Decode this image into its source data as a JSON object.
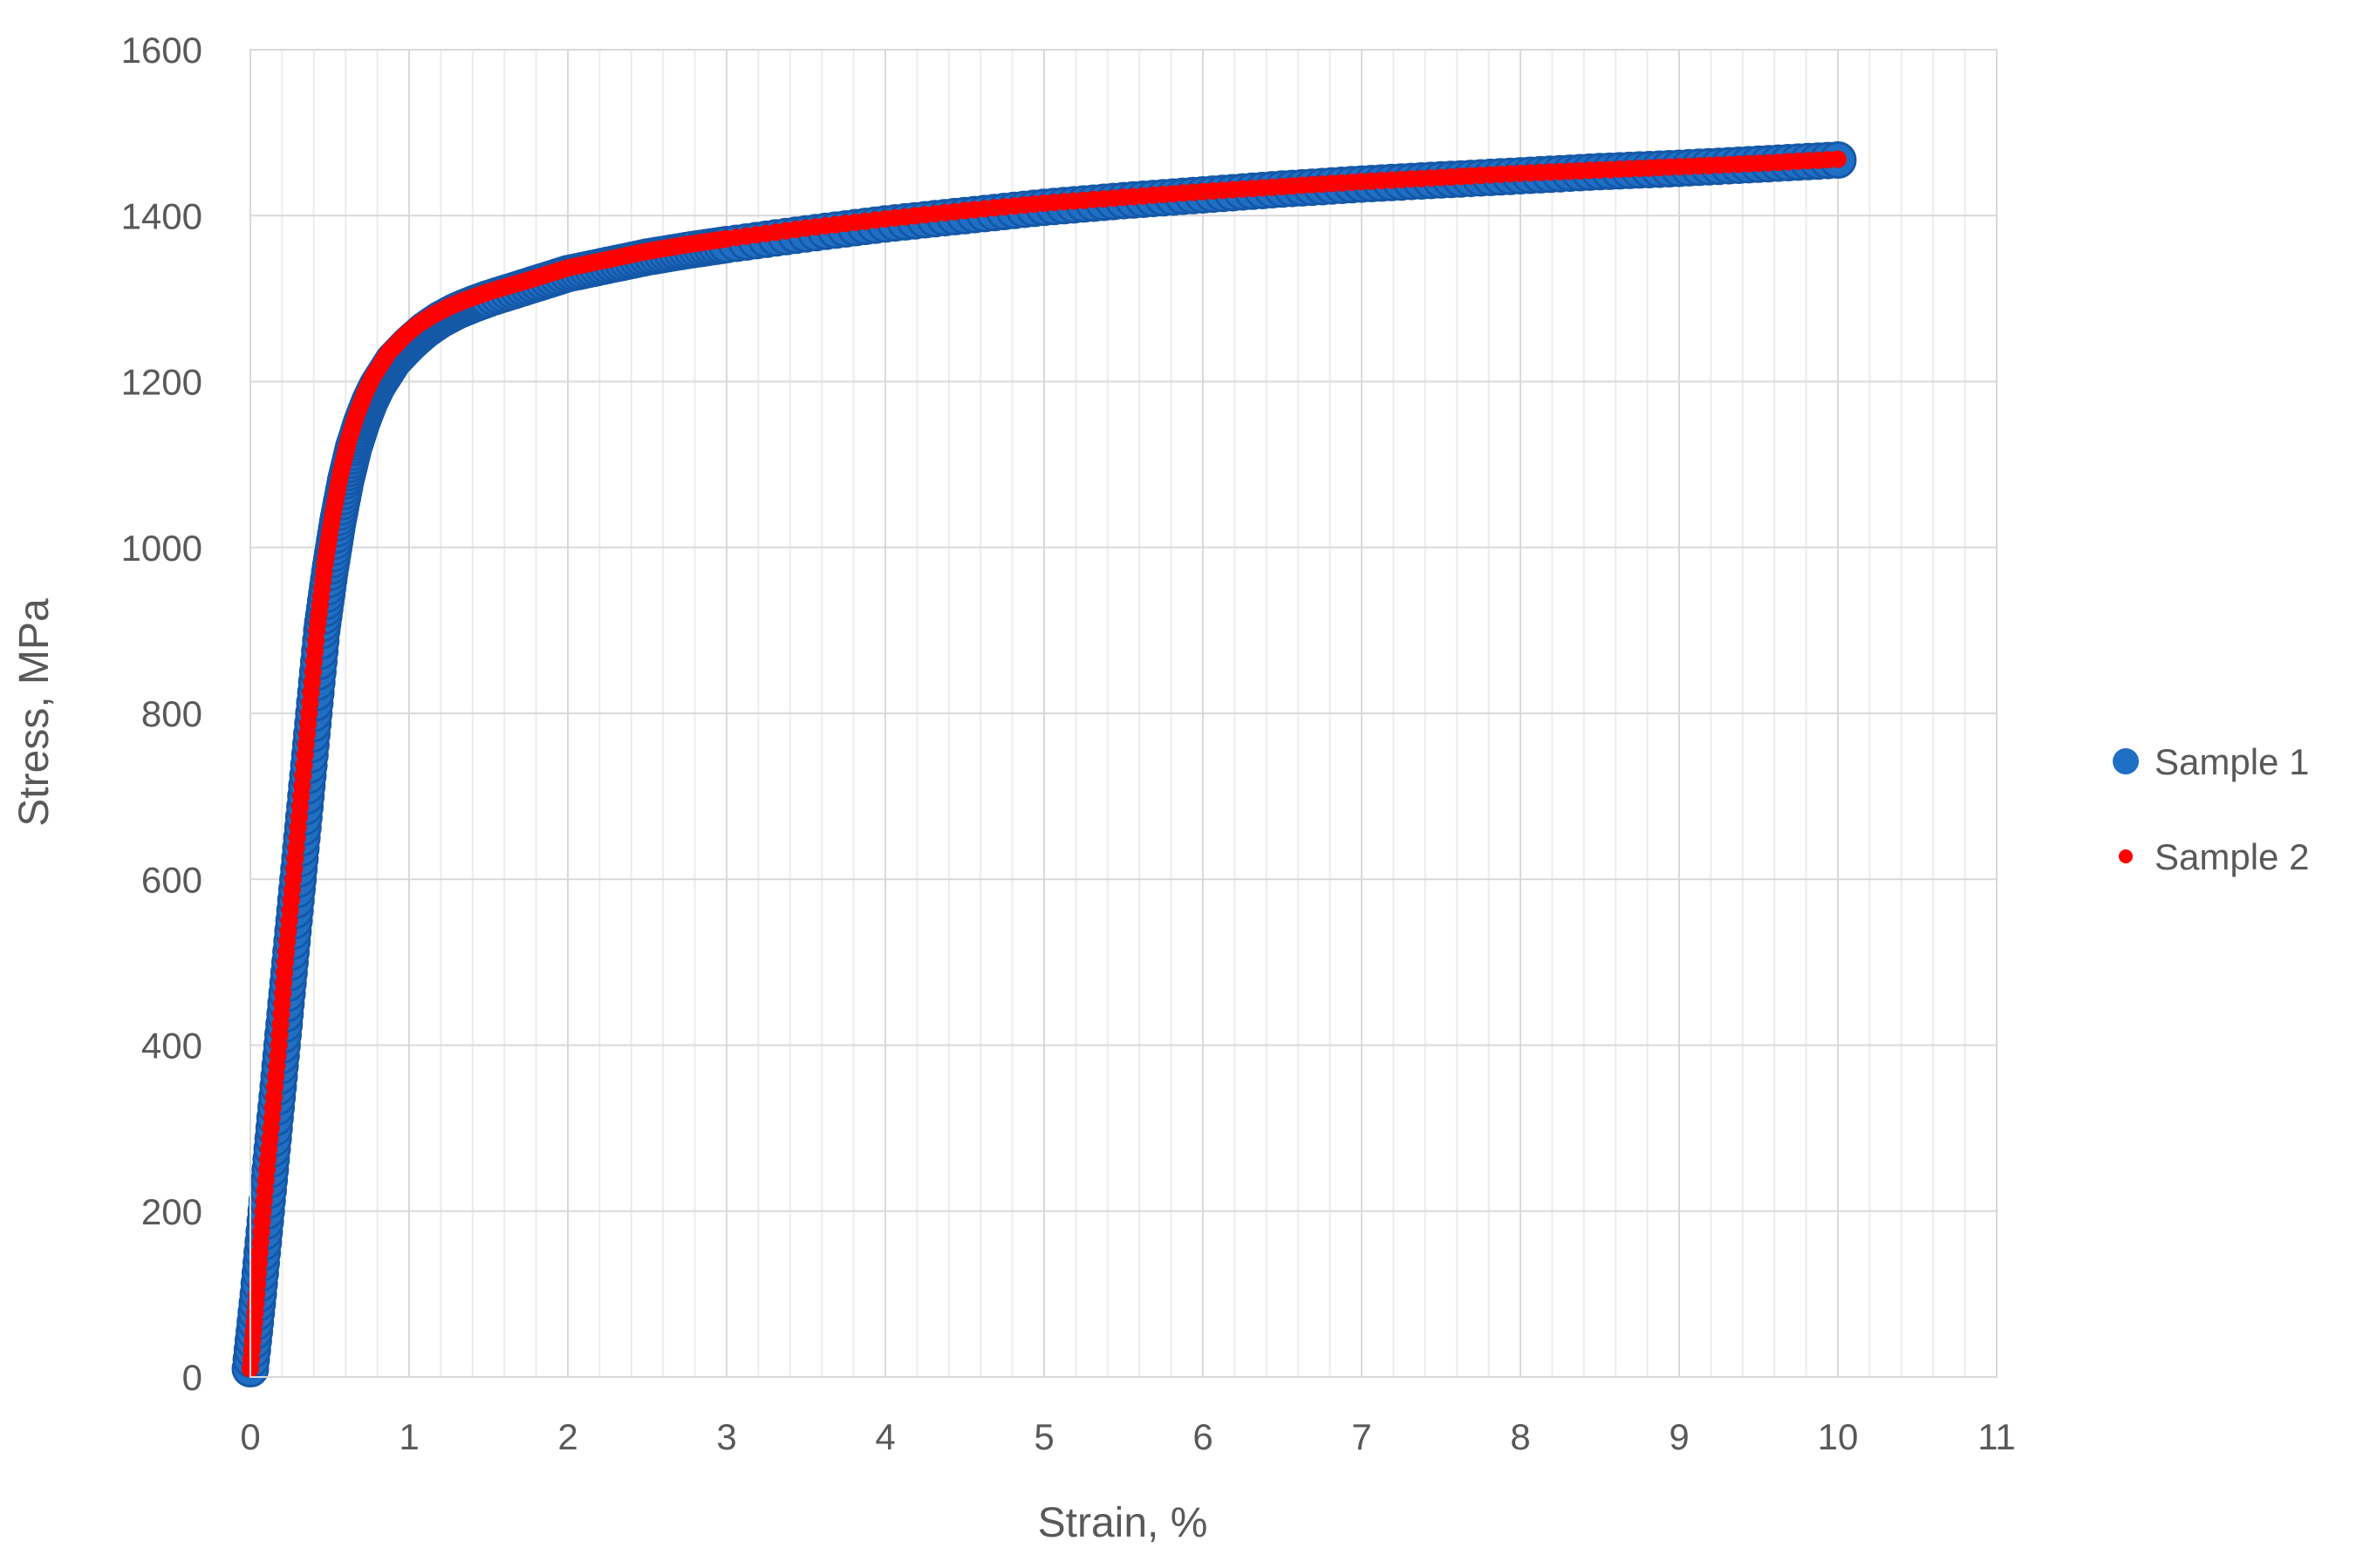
{
  "chart_data": {
    "type": "scatter",
    "title": "",
    "xlabel": "Strain, %",
    "ylabel": "Stress, MPa",
    "xlim": [
      0,
      11
    ],
    "ylim": [
      0,
      1600
    ],
    "x_ticks": [
      0,
      1,
      2,
      3,
      4,
      5,
      6,
      7,
      8,
      9,
      10,
      11
    ],
    "y_ticks": [
      0,
      200,
      400,
      600,
      800,
      1000,
      1200,
      1400,
      1600
    ],
    "x_minor_step": 0.2,
    "grid": true,
    "legend_position": "right",
    "series": [
      {
        "name": "Sample 1",
        "color": "#1F6FC5",
        "marker": "large-circle",
        "points": [
          [
            0.0,
            10
          ],
          [
            0.05,
            100
          ],
          [
            0.1,
            200
          ],
          [
            0.15,
            300
          ],
          [
            0.2,
            400
          ],
          [
            0.25,
            500
          ],
          [
            0.3,
            600
          ],
          [
            0.35,
            700
          ],
          [
            0.4,
            800
          ],
          [
            0.45,
            900
          ],
          [
            0.5,
            970
          ],
          [
            0.55,
            1030
          ],
          [
            0.6,
            1080
          ],
          [
            0.65,
            1120
          ],
          [
            0.7,
            1150
          ],
          [
            0.75,
            1175
          ],
          [
            0.8,
            1195
          ],
          [
            0.85,
            1210
          ],
          [
            0.9,
            1225
          ],
          [
            0.95,
            1235
          ],
          [
            1.0,
            1245
          ],
          [
            1.1,
            1262
          ],
          [
            1.2,
            1275
          ],
          [
            1.3,
            1285
          ],
          [
            1.4,
            1293
          ],
          [
            1.5,
            1300
          ],
          [
            1.75,
            1315
          ],
          [
            2.0,
            1330
          ],
          [
            2.25,
            1340
          ],
          [
            2.5,
            1350
          ],
          [
            2.75,
            1358
          ],
          [
            3.0,
            1365
          ],
          [
            3.5,
            1378
          ],
          [
            4.0,
            1390
          ],
          [
            4.5,
            1400
          ],
          [
            5.0,
            1410
          ],
          [
            5.5,
            1418
          ],
          [
            6.0,
            1425
          ],
          [
            6.5,
            1432
          ],
          [
            7.0,
            1438
          ],
          [
            7.5,
            1443
          ],
          [
            8.0,
            1448
          ],
          [
            8.5,
            1453
          ],
          [
            9.0,
            1457
          ],
          [
            9.5,
            1462
          ],
          [
            10.0,
            1467
          ]
        ]
      },
      {
        "name": "Sample 2",
        "color": "#FF0000",
        "marker": "small-circle",
        "points": [
          [
            0.0,
            10
          ],
          [
            0.04,
            100
          ],
          [
            0.08,
            200
          ],
          [
            0.13,
            300
          ],
          [
            0.18,
            400
          ],
          [
            0.22,
            500
          ],
          [
            0.27,
            600
          ],
          [
            0.32,
            700
          ],
          [
            0.37,
            800
          ],
          [
            0.42,
            900
          ],
          [
            0.47,
            980
          ],
          [
            0.52,
            1040
          ],
          [
            0.57,
            1090
          ],
          [
            0.62,
            1130
          ],
          [
            0.67,
            1160
          ],
          [
            0.72,
            1185
          ],
          [
            0.77,
            1205
          ],
          [
            0.82,
            1220
          ],
          [
            0.87,
            1235
          ],
          [
            0.92,
            1245
          ],
          [
            0.97,
            1255
          ],
          [
            1.05,
            1268
          ],
          [
            1.15,
            1280
          ],
          [
            1.25,
            1290
          ],
          [
            1.35,
            1298
          ],
          [
            1.5,
            1308
          ],
          [
            1.75,
            1322
          ],
          [
            2.0,
            1337
          ],
          [
            2.25,
            1347
          ],
          [
            2.5,
            1357
          ],
          [
            2.75,
            1365
          ],
          [
            3.0,
            1372
          ],
          [
            3.5,
            1385
          ],
          [
            4.0,
            1396
          ],
          [
            4.5,
            1406
          ],
          [
            5.0,
            1415
          ],
          [
            5.5,
            1422
          ],
          [
            6.0,
            1429
          ],
          [
            6.5,
            1435
          ],
          [
            7.0,
            1441
          ],
          [
            7.5,
            1446
          ],
          [
            8.0,
            1451
          ],
          [
            8.5,
            1455
          ],
          [
            9.0,
            1459
          ],
          [
            9.5,
            1463
          ],
          [
            10.0,
            1468
          ]
        ]
      }
    ]
  }
}
